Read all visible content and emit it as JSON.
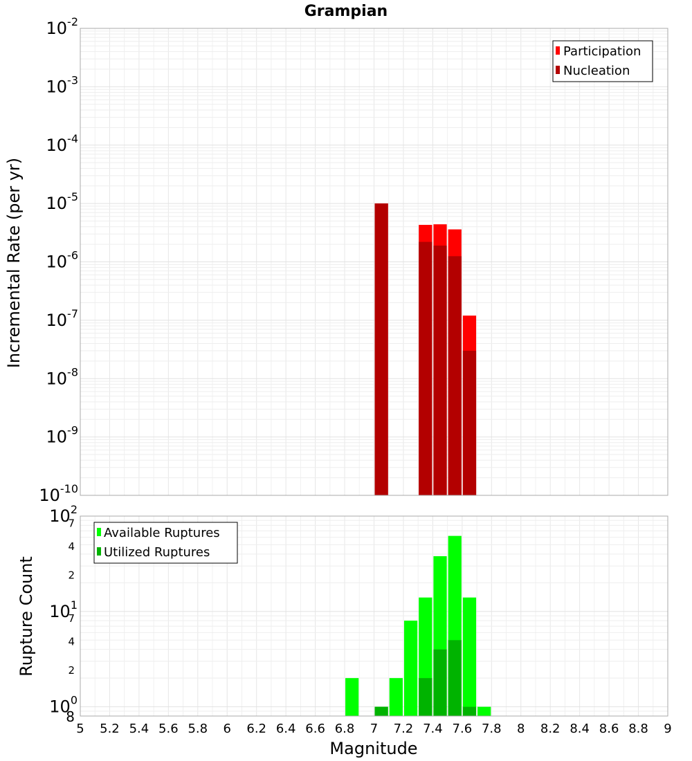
{
  "chart_data": [
    {
      "type": "bar",
      "title": "Grampian",
      "xlabel": "",
      "ylabel": "Incremental Rate (per yr)",
      "xlim": [
        5,
        9
      ],
      "ylim": [
        1e-10,
        0.01
      ],
      "yscale": "log",
      "grid": true,
      "legend_position": "top-right",
      "bar_width": 0.1,
      "x_tick_labels": [
        "5",
        "5.2",
        "5.4",
        "5.6",
        "5.8",
        "6",
        "6.2",
        "6.4",
        "6.6",
        "6.8",
        "7",
        "7.2",
        "7.4",
        "7.6",
        "7.8",
        "8",
        "8.2",
        "8.4",
        "8.6",
        "8.8",
        "9"
      ],
      "y_tick_labels": [
        {
          "base": "10",
          "exp": "-2"
        },
        {
          "base": "10",
          "exp": "-3"
        },
        {
          "base": "10",
          "exp": "-4"
        },
        {
          "base": "10",
          "exp": "-5"
        },
        {
          "base": "10",
          "exp": "-6"
        },
        {
          "base": "10",
          "exp": "-7"
        },
        {
          "base": "10",
          "exp": "-8"
        },
        {
          "base": "10",
          "exp": "-9"
        },
        {
          "base": "10",
          "exp": "-10"
        }
      ],
      "series": [
        {
          "name": "Participation",
          "color": "#ff0000",
          "x": [
            7.05,
            7.35,
            7.45,
            7.55,
            7.65
          ],
          "values": [
            1e-05,
            4.3e-06,
            4.4e-06,
            3.6e-06,
            1.2e-07
          ]
        },
        {
          "name": "Nucleation",
          "color": "#b30000",
          "x": [
            7.05,
            7.35,
            7.45,
            7.55,
            7.65
          ],
          "values": [
            1e-05,
            2.2e-06,
            1.9e-06,
            1.25e-06,
            3e-08
          ]
        }
      ]
    },
    {
      "type": "bar",
      "title": "",
      "xlabel": "Magnitude",
      "ylabel": "Rupture Count",
      "xlim": [
        5,
        9
      ],
      "ylim": [
        0.8,
        100
      ],
      "yscale": "log",
      "grid": true,
      "legend_position": "top-left",
      "bar_width": 0.1,
      "x_tick_labels": [
        "5",
        "5.2",
        "5.4",
        "5.6",
        "5.8",
        "6",
        "6.2",
        "6.4",
        "6.6",
        "6.8",
        "7",
        "7.2",
        "7.4",
        "7.6",
        "7.8",
        "8",
        "8.2",
        "8.4",
        "8.6",
        "8.8",
        "9"
      ],
      "y_major_labels": [
        {
          "base": "10",
          "exp": "2"
        },
        {
          "base": "10",
          "exp": "1"
        },
        {
          "base": "10",
          "exp": "0"
        }
      ],
      "y_minor_labels": [
        {
          "value": 70,
          "label": "7"
        },
        {
          "value": 40,
          "label": "4"
        },
        {
          "value": 20,
          "label": "2"
        },
        {
          "value": 7,
          "label": "7"
        },
        {
          "value": 4,
          "label": "4"
        },
        {
          "value": 2,
          "label": "2"
        },
        {
          "value": 0.8,
          "label": "8"
        }
      ],
      "series": [
        {
          "name": "Available Ruptures",
          "color": "#00ff00",
          "x": [
            6.85,
            7.05,
            7.15,
            7.25,
            7.35,
            7.45,
            7.55,
            7.65,
            7.75
          ],
          "values": [
            2,
            1,
            2,
            8,
            14,
            38,
            62,
            14,
            1
          ]
        },
        {
          "name": "Utilized Ruptures",
          "color": "#00b300",
          "x": [
            7.05,
            7.35,
            7.45,
            7.55,
            7.65
          ],
          "values": [
            1,
            2,
            4,
            5,
            1
          ]
        }
      ]
    }
  ]
}
